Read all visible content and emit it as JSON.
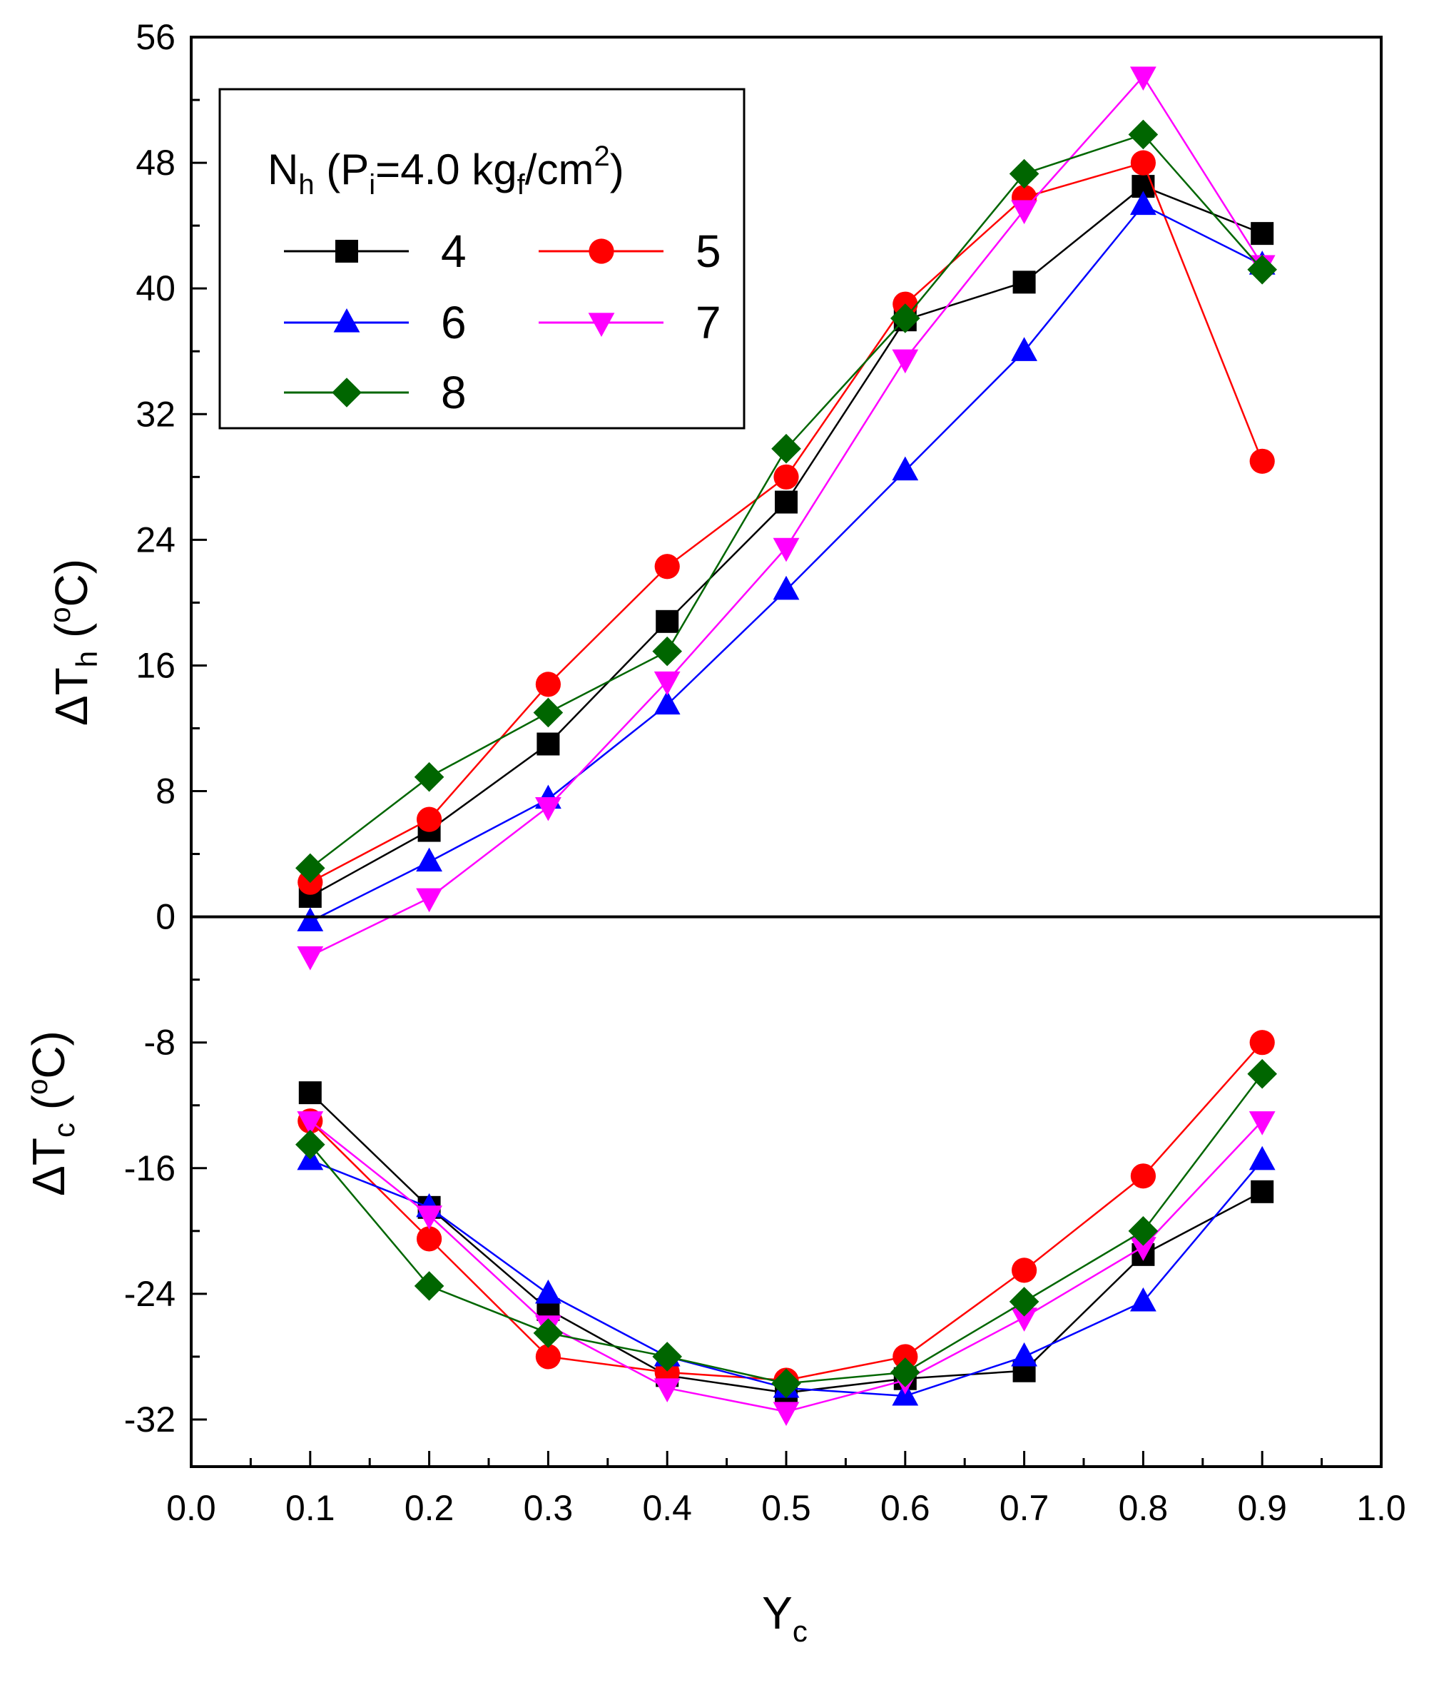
{
  "chart_data": {
    "type": "line",
    "xlabel": {
      "main": "Y",
      "sub": "c"
    },
    "ylabel_top": {
      "prefix": "ΔT",
      "sub": "h",
      "unit_open": " (",
      "deg": "o",
      "unit_close": "C)"
    },
    "ylabel_bottom": {
      "prefix": "ΔT",
      "sub": "c",
      "unit_open": " (",
      "deg": "o",
      "unit_close": "C)"
    },
    "xlim": [
      0.0,
      1.0
    ],
    "ylim": [
      -35,
      56
    ],
    "x_ticks": [
      "0.0",
      "0.1",
      "0.2",
      "0.3",
      "0.4",
      "0.5",
      "0.6",
      "0.7",
      "0.8",
      "0.9",
      "1.0"
    ],
    "x_tick_values": [
      0.0,
      0.1,
      0.2,
      0.3,
      0.4,
      0.5,
      0.6,
      0.7,
      0.8,
      0.9,
      1.0
    ],
    "y_ticks": [
      "56",
      "48",
      "40",
      "32",
      "24",
      "16",
      "8",
      "0",
      "-8",
      "-16",
      "-24",
      "-32"
    ],
    "y_tick_values": [
      56,
      48,
      40,
      32,
      24,
      16,
      8,
      0,
      -8,
      -16,
      -24,
      -32
    ],
    "legend": {
      "title_main": "N",
      "title_sub": "h",
      "title_rest_open": " (P",
      "title_sub2": "i",
      "title_rest_mid": "=4.0 kg",
      "title_sub3": "f",
      "title_rest_unit": "/cm",
      "title_sup": "2",
      "title_close": ")",
      "position": "top-left"
    },
    "x": [
      0.1,
      0.2,
      0.3,
      0.4,
      0.5,
      0.6,
      0.7,
      0.8,
      0.9
    ],
    "series": [
      {
        "name": "4",
        "color": "#000000",
        "marker": "square",
        "hot": [
          1.3,
          5.5,
          11.0,
          18.8,
          26.4,
          38.0,
          40.4,
          46.5,
          43.5
        ],
        "cold": [
          -11.2,
          -18.5,
          -25.0,
          -29.2,
          -30.3,
          -29.4,
          -28.9,
          -21.5,
          -17.5
        ]
      },
      {
        "name": "5",
        "color": "#ff0000",
        "marker": "circle",
        "hot": [
          2.2,
          6.2,
          14.8,
          22.3,
          28.0,
          39.0,
          45.8,
          48.0,
          29.0
        ],
        "cold": [
          -13.0,
          -20.5,
          -28.0,
          -29.0,
          -29.5,
          -28.0,
          -22.5,
          -16.5,
          -8.0
        ]
      },
      {
        "name": "6",
        "color": "#0000ff",
        "marker": "triangle-up",
        "hot": [
          -0.3,
          3.5,
          7.5,
          13.5,
          20.8,
          28.4,
          36.0,
          45.3,
          41.5
        ],
        "cold": [
          -15.5,
          -18.5,
          -24.0,
          -28.0,
          -30.0,
          -30.5,
          -28.0,
          -24.5,
          -15.5
        ]
      },
      {
        "name": "7",
        "color": "#ff00ff",
        "marker": "triangle-down",
        "hot": [
          -2.5,
          1.2,
          7.0,
          15.0,
          23.5,
          35.5,
          45.0,
          53.5,
          41.5
        ],
        "cold": [
          -13.0,
          -19.0,
          -26.0,
          -30.0,
          -31.5,
          -29.5,
          -25.5,
          -21.0,
          -13.0
        ]
      },
      {
        "name": "8",
        "color": "#006600",
        "marker": "diamond",
        "hot": [
          3.1,
          8.9,
          13.0,
          16.9,
          29.8,
          38.1,
          47.3,
          49.8,
          41.2
        ],
        "cold": [
          -14.5,
          -23.5,
          -26.5,
          -28.0,
          -29.7,
          -29.0,
          -24.5,
          -20.0,
          -10.0
        ]
      }
    ]
  }
}
